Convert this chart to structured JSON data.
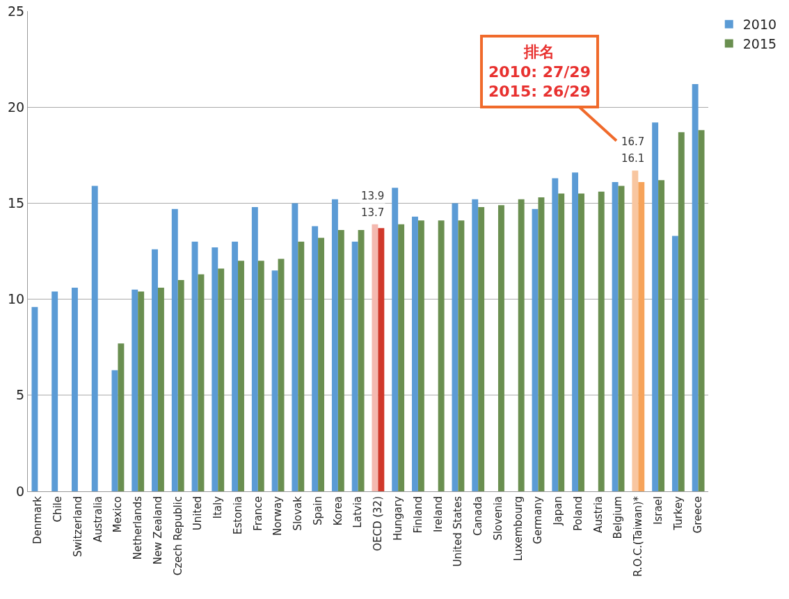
{
  "chart_data": {
    "type": "bar",
    "categories": [
      "Denmark",
      "Chile",
      "Switzerland",
      "Australia",
      "Mexico",
      "Netherlands",
      "New Zealand",
      "Czech Republic",
      "United",
      "Italy",
      "Estonia",
      "France",
      "Norway",
      "Slovak",
      "Spain",
      "Korea",
      "Latvia",
      "OECD (32)",
      "Hungary",
      "Finland",
      "Ireland",
      "United States",
      "Canada",
      "Slovenia",
      "Luxembourg",
      "Germany",
      "Japan",
      "Poland",
      "Austria",
      "Belgium",
      "R.O.C.(Taiwan)*",
      "Israel",
      "Turkey",
      "Greece"
    ],
    "series": [
      {
        "name": "2010",
        "colors": [
          "#5b9bd5",
          "#5b9bd5",
          "#5b9bd5",
          "#5b9bd5",
          "#5b9bd5",
          "#5b9bd5",
          "#5b9bd5",
          "#5b9bd5",
          "#5b9bd5",
          "#5b9bd5",
          "#5b9bd5",
          "#5b9bd5",
          "#5b9bd5",
          "#5b9bd5",
          "#5b9bd5",
          "#5b9bd5",
          "#5b9bd5",
          "#f4b9b0",
          "#5b9bd5",
          "#5b9bd5",
          "#5b9bd5",
          "#5b9bd5",
          "#5b9bd5",
          "#5b9bd5",
          "#5b9bd5",
          "#5b9bd5",
          "#5b9bd5",
          "#5b9bd5",
          "#5b9bd5",
          "#5b9bd5",
          "#f8c6a0",
          "#5b9bd5",
          "#5b9bd5",
          "#5b9bd5"
        ],
        "values": [
          9.6,
          10.4,
          10.6,
          15.9,
          6.3,
          10.5,
          12.6,
          14.7,
          13.0,
          12.7,
          13.0,
          14.8,
          11.5,
          15.0,
          13.8,
          15.2,
          13.0,
          13.9,
          15.8,
          14.3,
          null,
          15.0,
          15.2,
          null,
          null,
          14.7,
          16.3,
          16.6,
          null,
          16.1,
          16.7,
          19.2,
          13.3,
          21.2
        ],
        "value_labels": [
          null,
          null,
          null,
          null,
          null,
          null,
          null,
          null,
          null,
          null,
          null,
          null,
          null,
          null,
          null,
          null,
          null,
          "13.9",
          null,
          null,
          null,
          null,
          null,
          null,
          null,
          null,
          null,
          null,
          null,
          null,
          "16.7",
          null,
          null,
          null
        ]
      },
      {
        "name": "2015",
        "colors": [
          "#6a8f50",
          "#6a8f50",
          "#6a8f50",
          "#6a8f50",
          "#6a8f50",
          "#6a8f50",
          "#6a8f50",
          "#6a8f50",
          "#6a8f50",
          "#6a8f50",
          "#6a8f50",
          "#6a8f50",
          "#6a8f50",
          "#6a8f50",
          "#6a8f50",
          "#6a8f50",
          "#6a8f50",
          "#d0392b",
          "#6a8f50",
          "#6a8f50",
          "#6a8f50",
          "#6a8f50",
          "#6a8f50",
          "#6a8f50",
          "#6a8f50",
          "#6a8f50",
          "#6a8f50",
          "#6a8f50",
          "#6a8f50",
          "#6a8f50",
          "#f6a35a",
          "#6a8f50",
          "#6a8f50",
          "#6a8f50"
        ],
        "values": [
          null,
          null,
          null,
          null,
          7.7,
          10.4,
          10.6,
          11.0,
          11.3,
          11.6,
          12.0,
          12.0,
          12.1,
          13.0,
          13.2,
          13.6,
          13.6,
          13.7,
          13.9,
          14.1,
          14.1,
          14.1,
          14.8,
          14.9,
          15.2,
          15.3,
          15.5,
          15.5,
          15.6,
          15.9,
          16.1,
          16.2,
          18.7,
          18.8
        ],
        "value_labels": [
          null,
          null,
          null,
          null,
          null,
          null,
          null,
          null,
          null,
          null,
          null,
          null,
          null,
          null,
          null,
          null,
          null,
          "13.7",
          null,
          null,
          null,
          null,
          null,
          null,
          null,
          null,
          null,
          null,
          null,
          null,
          "16.1",
          null,
          null,
          null
        ]
      }
    ],
    "ylim": [
      0,
      25
    ],
    "yticks": [
      0,
      5,
      10,
      15,
      20,
      25
    ],
    "grid": "y",
    "legend": "top right",
    "annotations": [
      "排名\n2010: 27/29\n2015: 26/29"
    ]
  }
}
